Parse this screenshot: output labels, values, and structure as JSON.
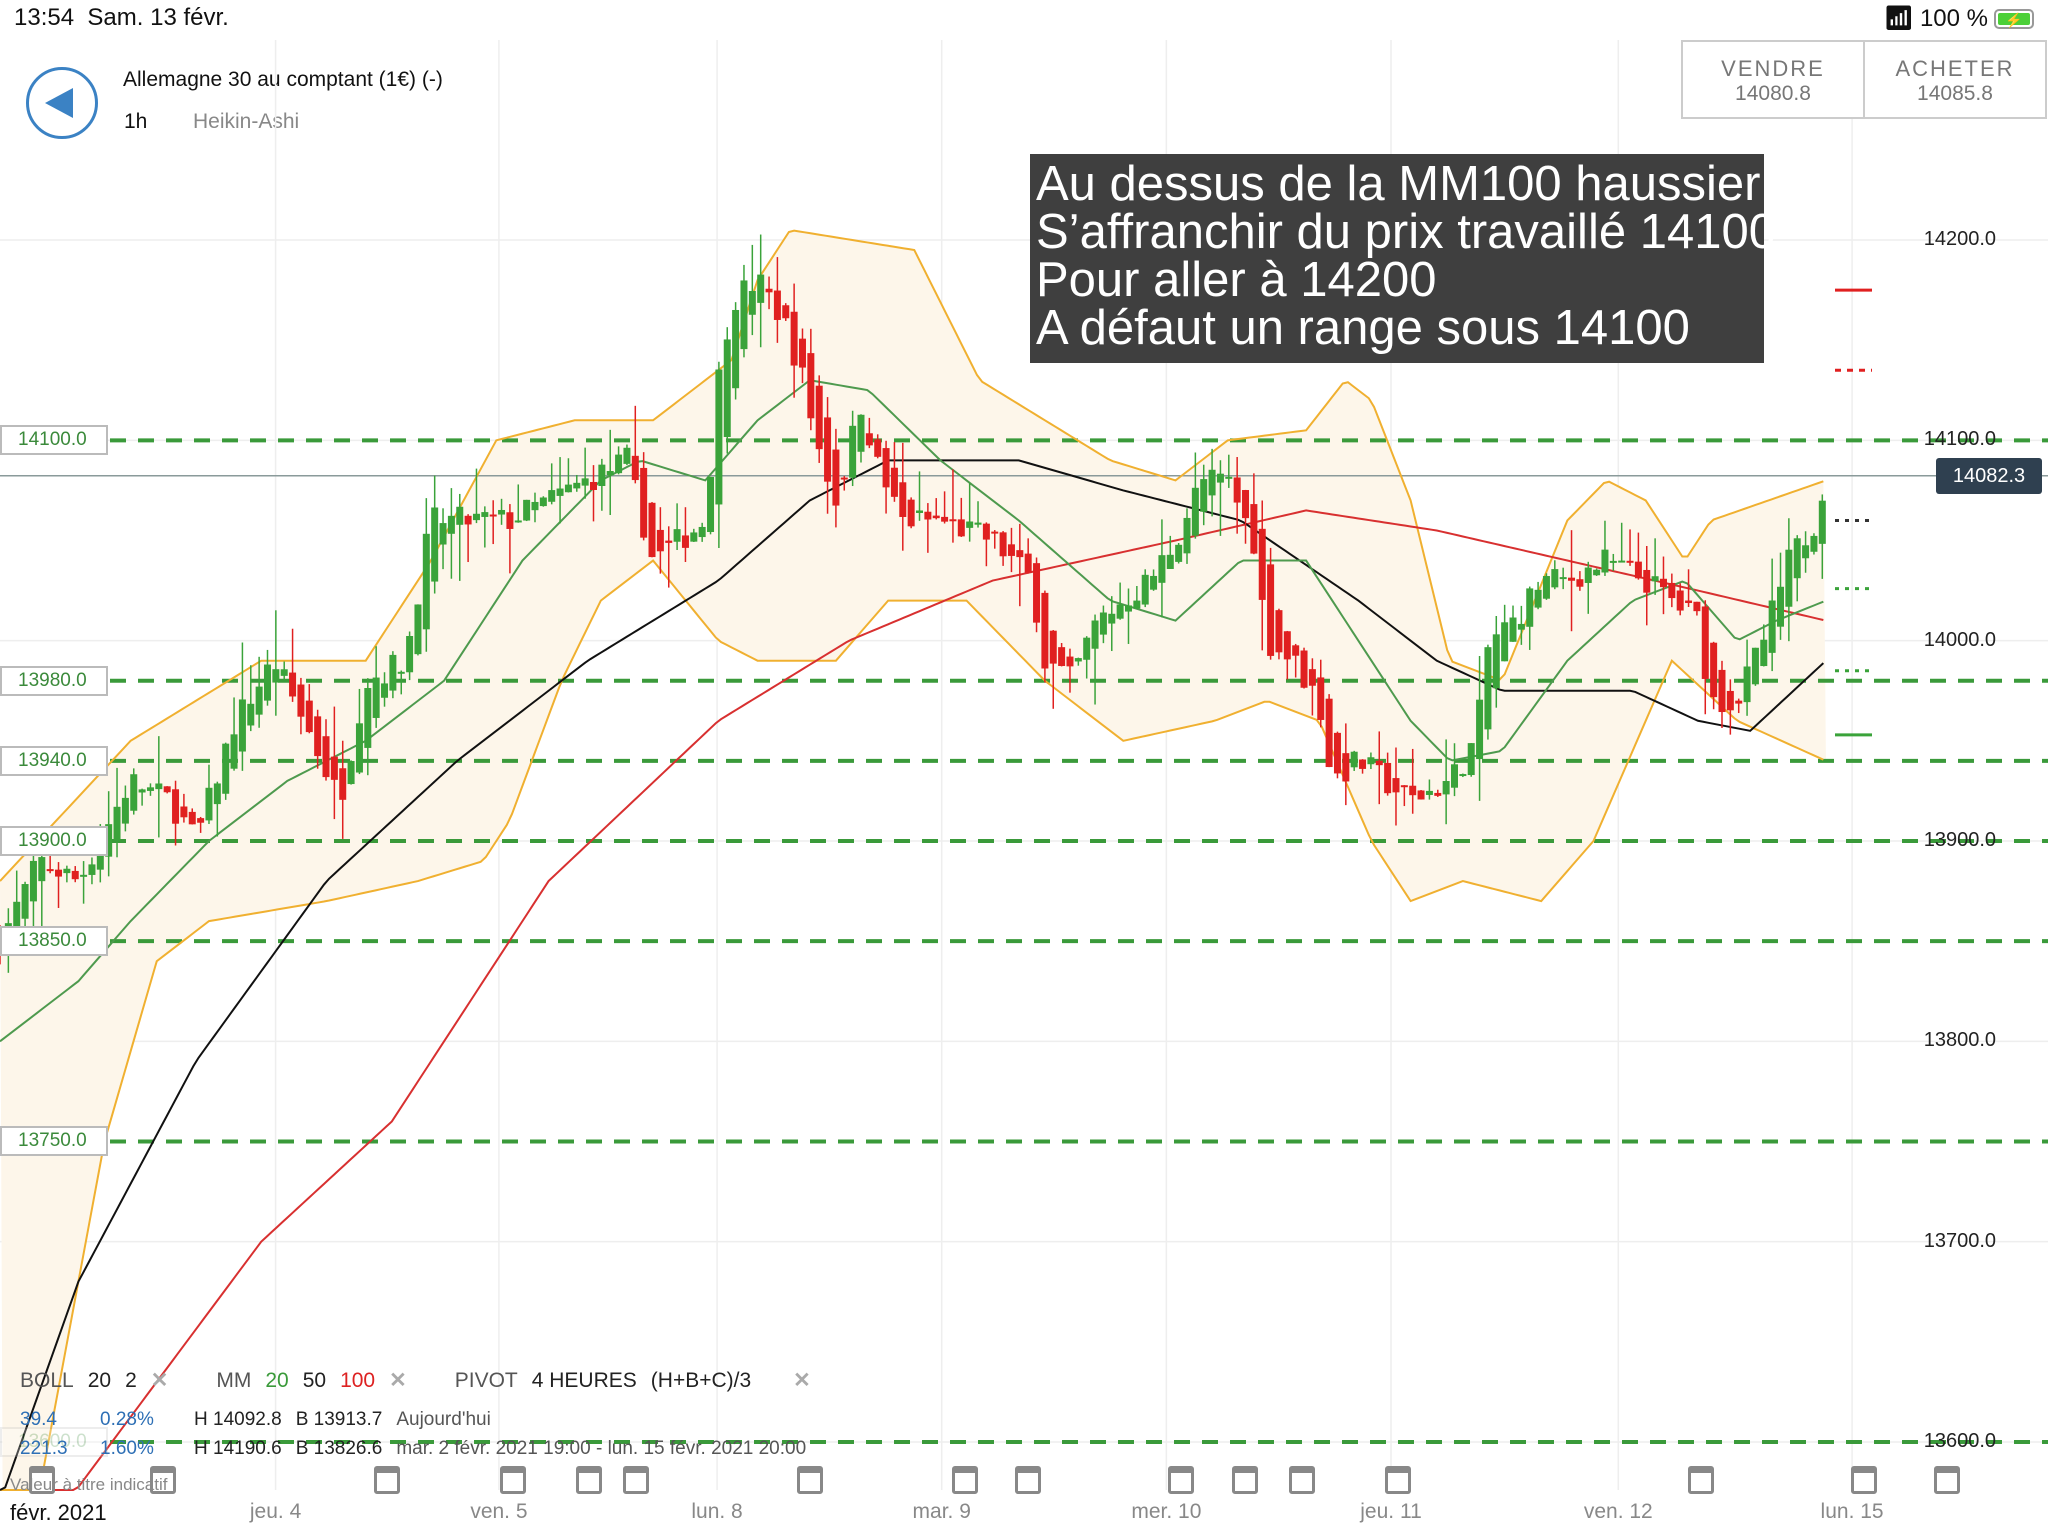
{
  "status_bar": {
    "time": "13:54",
    "date": "Sam. 13 févr.",
    "battery": "100 %",
    "wifi_icon": "wifi-icon",
    "battery_icon": "battery-charging-icon"
  },
  "header": {
    "title": "Allemagne 30 au comptant (1€) (-)",
    "timeframe": "1h",
    "chart_type": "Heikin-Ashi",
    "back_icon": "back-arrow-icon"
  },
  "trade": {
    "sell_label": "VENDRE",
    "sell_price": "14080.8",
    "buy_label": "ACHETER",
    "buy_price": "14085.8"
  },
  "annotation": {
    "text": "Au dessus de la MM100 haussier\nS’affranchir du prix travaillé 14100\nPour aller à 14200\nA défaut un range sous 14100"
  },
  "levels": [
    {
      "label": "14100.0",
      "value": 14100
    },
    {
      "label": "13980.0",
      "value": 13980
    },
    {
      "label": "13940.0",
      "value": 13940
    },
    {
      "label": "13900.0",
      "value": 13900
    },
    {
      "label": "13850.0",
      "value": 13850
    },
    {
      "label": "13750.0",
      "value": 13750
    },
    {
      "label": "13600.0",
      "value": 13600
    }
  ],
  "current_price": {
    "label": "14082.3",
    "value": 14082.3
  },
  "y_axis": {
    "ticks": [
      "14200.0",
      "14100.0",
      "14000.0",
      "13900.0",
      "13800.0",
      "13700.0",
      "13600.0"
    ],
    "range": [
      13600,
      14200
    ]
  },
  "x_axis": {
    "month": "févr. 2021",
    "labels": [
      "jeu. 4",
      "ven. 5",
      "lun. 8",
      "mar. 9",
      "mer. 10",
      "jeu. 11",
      "ven. 12",
      "lun. 15"
    ]
  },
  "legend": {
    "boll": {
      "name": "BOLL",
      "p1": "20",
      "p2": "2"
    },
    "mm": {
      "name": "MM",
      "p20": "20",
      "p50": "50",
      "p100": "100"
    },
    "pivot": {
      "name": "PIVOT",
      "period": "4 HEURES",
      "formula": "(H+B+C)/3"
    },
    "row1": {
      "change": "39.4",
      "pct": "0.28%",
      "high": "H 14092.8",
      "low": "B 13913.7",
      "period": "Aujourd'hui"
    },
    "row2": {
      "change": "221.3",
      "pct": "1.60%",
      "high": "H 14190.6",
      "low": "B 13826.6",
      "period": "mar. 2 févr. 2021 19:00 - lun. 15 févr. 2021 20:00"
    },
    "note": "Valeur à titre indicatif",
    "close_icon": "close-x-icon",
    "calendar_icon": "calendar-icon"
  },
  "colors": {
    "up": "#3aa33a",
    "down": "#e02020",
    "mm20": "#4e9a4e",
    "mm50": "#111111",
    "mm100": "#d83030",
    "boll": "#f0b030",
    "boll_fill": "#fdf6ea",
    "level": "#3a9a3a",
    "annotation_bg": "#3f3f3f"
  },
  "chart_data": {
    "type": "candlestick",
    "style": "Heikin-Ashi",
    "x_range": [
      "févr. 2021",
      "lun. 15"
    ],
    "price_path": [
      [
        0,
        13850
      ],
      [
        30,
        13890
      ],
      [
        60,
        13880
      ],
      [
        100,
        13930
      ],
      [
        130,
        13920
      ],
      [
        150,
        13900
      ],
      [
        180,
        13960
      ],
      [
        210,
        13990
      ],
      [
        240,
        13950
      ],
      [
        260,
        13920
      ],
      [
        280,
        13980
      ],
      [
        310,
        13990
      ],
      [
        330,
        14060
      ],
      [
        360,
        14060
      ],
      [
        390,
        14060
      ],
      [
        420,
        14070
      ],
      [
        450,
        14080
      ],
      [
        480,
        14090
      ],
      [
        500,
        14040
      ],
      [
        520,
        14050
      ],
      [
        540,
        14060
      ],
      [
        550,
        14130
      ],
      [
        560,
        14170
      ],
      [
        580,
        14180
      ],
      [
        600,
        14160
      ],
      [
        615,
        14130
      ],
      [
        625,
        14100
      ],
      [
        640,
        14070
      ],
      [
        660,
        14120
      ],
      [
        670,
        14090
      ],
      [
        690,
        14060
      ],
      [
        720,
        14060
      ],
      [
        760,
        14050
      ],
      [
        790,
        14030
      ],
      [
        800,
        13990
      ],
      [
        820,
        13980
      ],
      [
        840,
        14010
      ],
      [
        860,
        14020
      ],
      [
        880,
        14030
      ],
      [
        900,
        14050
      ],
      [
        920,
        14080
      ],
      [
        940,
        14080
      ],
      [
        960,
        14050
      ],
      [
        970,
        14000
      ],
      [
        990,
        13990
      ],
      [
        1010,
        13970
      ],
      [
        1020,
        13930
      ],
      [
        1040,
        13940
      ],
      [
        1060,
        13930
      ],
      [
        1080,
        13920
      ],
      [
        1110,
        13930
      ],
      [
        1130,
        13950
      ],
      [
        1140,
        14000
      ],
      [
        1160,
        14010
      ],
      [
        1180,
        14030
      ],
      [
        1200,
        14030
      ],
      [
        1230,
        14040
      ],
      [
        1260,
        14030
      ],
      [
        1280,
        14020
      ],
      [
        1300,
        14010
      ],
      [
        1310,
        13970
      ],
      [
        1330,
        13970
      ],
      [
        1350,
        14000
      ],
      [
        1370,
        14040
      ],
      [
        1390,
        14060
      ],
      [
        1398,
        14085
      ]
    ],
    "mm100": [
      [
        40,
        13560
      ],
      [
        200,
        13700
      ],
      [
        300,
        13760
      ],
      [
        420,
        13880
      ],
      [
        550,
        13960
      ],
      [
        650,
        14000
      ],
      [
        760,
        14030
      ],
      [
        900,
        14050
      ],
      [
        1000,
        14065
      ],
      [
        1100,
        14055
      ],
      [
        1200,
        14040
      ],
      [
        1300,
        14025
      ],
      [
        1398,
        14010
      ]
    ],
    "mm50": [
      [
        0,
        13570
      ],
      [
        60,
        13680
      ],
      [
        150,
        13790
      ],
      [
        250,
        13880
      ],
      [
        350,
        13940
      ],
      [
        450,
        13990
      ],
      [
        550,
        14030
      ],
      [
        620,
        14070
      ],
      [
        680,
        14090
      ],
      [
        780,
        14090
      ],
      [
        860,
        14075
      ],
      [
        950,
        14060
      ],
      [
        1040,
        14020
      ],
      [
        1100,
        13990
      ],
      [
        1150,
        13975
      ],
      [
        1250,
        13975
      ],
      [
        1300,
        13960
      ],
      [
        1340,
        13955
      ],
      [
        1398,
        13990
      ]
    ],
    "mm20": [
      [
        0,
        13800
      ],
      [
        60,
        13830
      ],
      [
        100,
        13860
      ],
      [
        160,
        13900
      ],
      [
        220,
        13930
      ],
      [
        280,
        13950
      ],
      [
        340,
        13980
      ],
      [
        400,
        14040
      ],
      [
        460,
        14080
      ],
      [
        490,
        14090
      ],
      [
        540,
        14080
      ],
      [
        580,
        14110
      ],
      [
        620,
        14130
      ],
      [
        665,
        14125
      ],
      [
        720,
        14090
      ],
      [
        780,
        14060
      ],
      [
        850,
        14020
      ],
      [
        900,
        14010
      ],
      [
        950,
        14040
      ],
      [
        1000,
        14040
      ],
      [
        1040,
        14000
      ],
      [
        1080,
        13960
      ],
      [
        1110,
        13940
      ],
      [
        1150,
        13945
      ],
      [
        1200,
        13990
      ],
      [
        1250,
        14020
      ],
      [
        1290,
        14030
      ],
      [
        1330,
        14000
      ],
      [
        1360,
        14010
      ],
      [
        1398,
        14020
      ]
    ],
    "boll_upper": [
      [
        0,
        13880
      ],
      [
        100,
        13950
      ],
      [
        200,
        13990
      ],
      [
        280,
        13990
      ],
      [
        330,
        14040
      ],
      [
        380,
        14100
      ],
      [
        440,
        14110
      ],
      [
        500,
        14110
      ],
      [
        560,
        14140
      ],
      [
        580,
        14180
      ],
      [
        605,
        14205
      ],
      [
        700,
        14195
      ],
      [
        750,
        14130
      ],
      [
        800,
        14110
      ],
      [
        850,
        14090
      ],
      [
        900,
        14080
      ],
      [
        940,
        14100
      ],
      [
        1000,
        14105
      ],
      [
        1030,
        14130
      ],
      [
        1050,
        14120
      ],
      [
        1080,
        14070
      ],
      [
        1110,
        13990
      ],
      [
        1150,
        13980
      ],
      [
        1200,
        14060
      ],
      [
        1230,
        14080
      ],
      [
        1260,
        14070
      ],
      [
        1290,
        14040
      ],
      [
        1310,
        14060
      ],
      [
        1398,
        14080
      ]
    ],
    "boll_lower": [
      [
        0,
        13470
      ],
      [
        80,
        13750
      ],
      [
        120,
        13840
      ],
      [
        160,
        13860
      ],
      [
        250,
        13870
      ],
      [
        320,
        13880
      ],
      [
        370,
        13890
      ],
      [
        390,
        13910
      ],
      [
        430,
        13980
      ],
      [
        460,
        14020
      ],
      [
        500,
        14040
      ],
      [
        550,
        14000
      ],
      [
        580,
        13990
      ],
      [
        640,
        13990
      ],
      [
        680,
        14020
      ],
      [
        740,
        14020
      ],
      [
        800,
        13980
      ],
      [
        860,
        13950
      ],
      [
        930,
        13960
      ],
      [
        970,
        13970
      ],
      [
        1010,
        13960
      ],
      [
        1050,
        13900
      ],
      [
        1080,
        13870
      ],
      [
        1120,
        13880
      ],
      [
        1180,
        13870
      ],
      [
        1220,
        13900
      ],
      [
        1260,
        13960
      ],
      [
        1280,
        13990
      ],
      [
        1330,
        13960
      ],
      [
        1398,
        13940
      ]
    ]
  }
}
